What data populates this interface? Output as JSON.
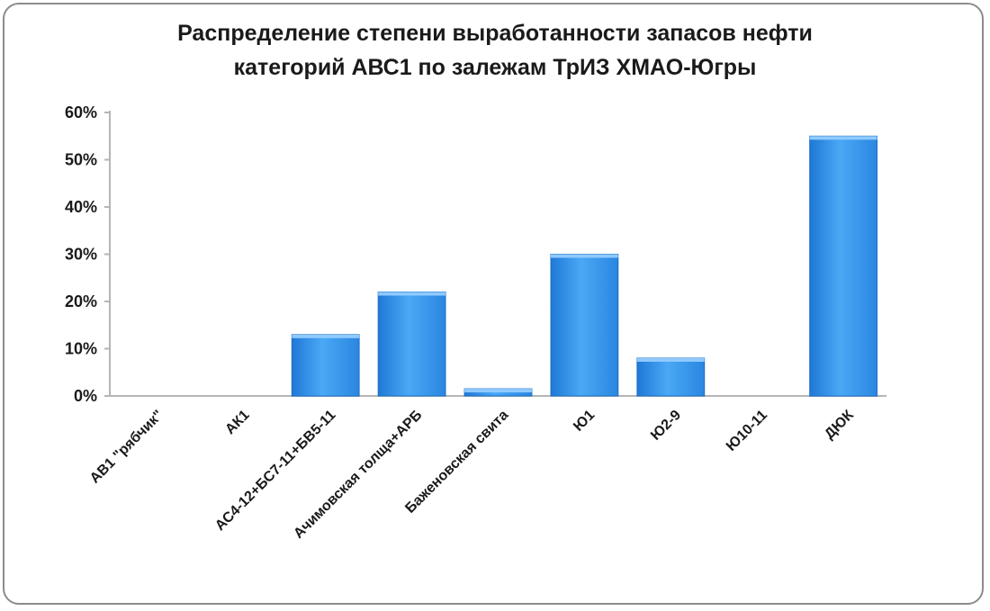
{
  "chart_data": {
    "type": "bar",
    "title": [
      "Распределение степени выработанности запасов нефти",
      "категорий АВС1 по залежам ТрИЗ ХМАО-Югры"
    ],
    "categories": [
      "АВ1 \"рябчик\"",
      "АК1",
      "АС4-12+БС7-11+БВ5-11",
      "Ачимовская толща+АРБ",
      "Баженовская свита",
      "Ю1",
      "Ю2-9",
      "Ю10-11",
      "ДЮК"
    ],
    "values": [
      0,
      0,
      13,
      22,
      1.5,
      30,
      8,
      0,
      55
    ],
    "yticks": [
      "0%",
      "10%",
      "20%",
      "30%",
      "40%",
      "50%",
      "60%"
    ],
    "ylim": [
      0,
      60
    ],
    "xlabel": "",
    "ylabel": "",
    "grid": false,
    "bar_color": "#3b9cf0"
  }
}
